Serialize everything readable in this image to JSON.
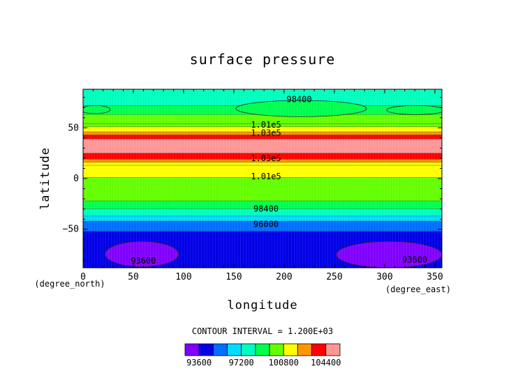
{
  "chart_data": {
    "type": "heatmap",
    "title": "surface pressure",
    "xlabel": "longitude",
    "ylabel": "latitude",
    "x_unit": "(degree_east)",
    "y_unit": "(degree_north)",
    "xlim": [
      0,
      357
    ],
    "ylim": [
      -88,
      88
    ],
    "xticks": [
      0,
      50,
      100,
      150,
      200,
      250,
      300,
      350
    ],
    "yticks": [
      -50,
      0,
      50
    ],
    "contour_interval_text": "CONTOUR INTERVAL = 1.200E+03",
    "color_levels": [
      93600,
      94800,
      96000,
      97200,
      98400,
      99600,
      100800,
      102000,
      103200,
      104400
    ],
    "colorbar_tick_labels": [
      "93600",
      "97200",
      "100800",
      "104400"
    ],
    "colors": [
      "#8000ff",
      "#0000e6",
      "#006eff",
      "#00dcff",
      "#00ffbe",
      "#00ff50",
      "#64ff00",
      "#ffff00",
      "#ff9600",
      "#ff0000",
      "#ff9696"
    ],
    "latitude_bands": [
      {
        "lat_min": 72,
        "lat_max": 88,
        "value": 97800
      },
      {
        "lat_min": 63,
        "lat_max": 72,
        "value": 98800
      },
      {
        "lat_min": 54,
        "lat_max": 63,
        "value": 99800
      },
      {
        "lat_min": 51,
        "lat_max": 54,
        "value": 100500
      },
      {
        "lat_min": 46,
        "lat_max": 51,
        "value": 101400
      },
      {
        "lat_min": 43,
        "lat_max": 46,
        "value": 102600
      },
      {
        "lat_min": 39,
        "lat_max": 43,
        "value": 103800
      },
      {
        "lat_min": 25,
        "lat_max": 39,
        "value": 104800
      },
      {
        "lat_min": 19,
        "lat_max": 25,
        "value": 103800
      },
      {
        "lat_min": 16,
        "lat_max": 19,
        "value": 102600
      },
      {
        "lat_min": 13,
        "lat_max": 16,
        "value": 101400
      },
      {
        "lat_min": 1,
        "lat_max": 13,
        "value": 101000
      },
      {
        "lat_min": -22,
        "lat_max": 1,
        "value": 99800
      },
      {
        "lat_min": -30,
        "lat_max": -22,
        "value": 98800
      },
      {
        "lat_min": -37,
        "lat_max": -30,
        "value": 97800
      },
      {
        "lat_min": -42,
        "lat_max": -37,
        "value": 96600
      },
      {
        "lat_min": -52,
        "lat_max": -42,
        "value": 95400
      },
      {
        "lat_min": -88,
        "lat_max": -52,
        "value": 94200
      }
    ],
    "regions": [
      {
        "kind": "low",
        "lon": [
          -3,
          27
        ],
        "lat": [
          64,
          72
        ],
        "value": 98800
      },
      {
        "kind": "low",
        "lon": [
          152,
          282
        ],
        "lat": [
          61,
          77
        ],
        "value": 98800
      },
      {
        "kind": "low",
        "lon": [
          302,
          360
        ],
        "lat": [
          63,
          72
        ],
        "value": 98800
      },
      {
        "kind": "low",
        "lon": [
          22,
          95
        ],
        "lat": [
          -87,
          -62
        ],
        "value": 93400
      },
      {
        "kind": "low",
        "lon": [
          252,
          357
        ],
        "lat": [
          -88,
          -62
        ],
        "value": 93400
      }
    ],
    "contour_labels": [
      {
        "text": "98400",
        "lon": 215,
        "lat": 78
      },
      {
        "text": "1.01e5",
        "lon": 182,
        "lat": 53
      },
      {
        "text": "1.03e5",
        "lon": 182,
        "lat": 45
      },
      {
        "text": "1.03e5",
        "lon": 182,
        "lat": 20
      },
      {
        "text": "1.01e5",
        "lon": 182,
        "lat": 2
      },
      {
        "text": "98400",
        "lon": 182,
        "lat": -30
      },
      {
        "text": "96000",
        "lon": 182,
        "lat": -45
      },
      {
        "text": "93600",
        "lon": 60,
        "lat": -81
      },
      {
        "text": "93600",
        "lon": 330,
        "lat": -80
      }
    ]
  }
}
